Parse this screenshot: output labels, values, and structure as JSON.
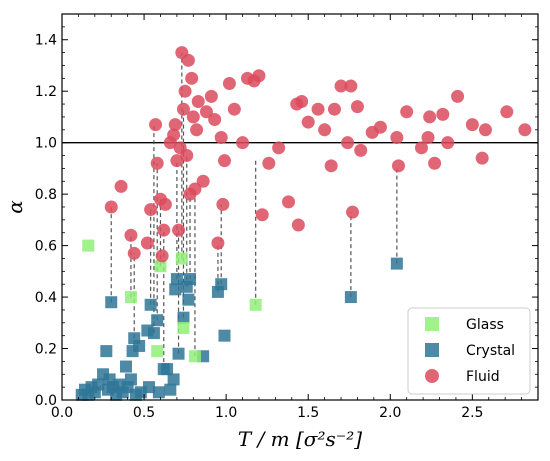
{
  "chart_data": {
    "type": "scatter",
    "xlabel": "T / m [σ²s⁻²]",
    "ylabel": "α",
    "xlim": [
      0.0,
      2.9
    ],
    "ylim": [
      0.0,
      1.5
    ],
    "xticks": [
      "0.0",
      "0.5",
      "1.0",
      "1.5",
      "2.0",
      "2.5"
    ],
    "yticks": [
      "0.0",
      "0.2",
      "0.4",
      "0.6",
      "0.8",
      "1.0",
      "1.2",
      "1.4"
    ],
    "reference_line_y": 1.0,
    "legend_position": "bottom-right",
    "colors": {
      "glass": "#90ee78",
      "crystal": "#2f7597",
      "fluid": "#dc4b5d",
      "connector": "#555555",
      "refline": "#000000"
    },
    "series": [
      {
        "name": "Glass",
        "marker": "square",
        "points": [
          [
            0.16,
            0.6
          ],
          [
            0.42,
            0.4
          ],
          [
            0.58,
            0.19
          ],
          [
            0.6,
            0.52
          ],
          [
            0.73,
            0.55
          ],
          [
            0.74,
            0.28
          ],
          [
            0.81,
            0.17
          ],
          [
            1.18,
            0.37
          ]
        ]
      },
      {
        "name": "Crystal",
        "marker": "square",
        "points": [
          [
            0.12,
            0.02
          ],
          [
            0.14,
            0.04
          ],
          [
            0.16,
            0.02
          ],
          [
            0.18,
            0.05
          ],
          [
            0.2,
            0.03
          ],
          [
            0.22,
            0.06
          ],
          [
            0.25,
            0.1
          ],
          [
            0.27,
            0.19
          ],
          [
            0.28,
            0.04
          ],
          [
            0.29,
            0.08
          ],
          [
            0.3,
            0.38
          ],
          [
            0.31,
            0.05
          ],
          [
            0.33,
            0.02
          ],
          [
            0.35,
            0.06
          ],
          [
            0.37,
            0.03
          ],
          [
            0.39,
            0.13
          ],
          [
            0.4,
            0.05
          ],
          [
            0.42,
            0.08
          ],
          [
            0.43,
            0.19
          ],
          [
            0.44,
            0.24
          ],
          [
            0.45,
            0.02
          ],
          [
            0.47,
            0.21
          ],
          [
            0.48,
            0.03
          ],
          [
            0.52,
            0.27
          ],
          [
            0.53,
            0.05
          ],
          [
            0.54,
            0.37
          ],
          [
            0.56,
            0.26
          ],
          [
            0.58,
            0.31
          ],
          [
            0.59,
            0.03
          ],
          [
            0.62,
            0.12
          ],
          [
            0.64,
            0.12
          ],
          [
            0.66,
            0.04
          ],
          [
            0.68,
            0.08
          ],
          [
            0.69,
            0.43
          ],
          [
            0.7,
            0.47
          ],
          [
            0.71,
            0.18
          ],
          [
            0.74,
            0.32
          ],
          [
            0.76,
            0.44
          ],
          [
            0.77,
            0.39
          ],
          [
            0.78,
            0.47
          ],
          [
            0.86,
            0.17
          ],
          [
            0.95,
            0.42
          ],
          [
            0.97,
            0.45
          ],
          [
            0.99,
            0.25
          ],
          [
            1.76,
            0.4
          ],
          [
            2.04,
            0.53
          ]
        ]
      },
      {
        "name": "Fluid",
        "marker": "circle",
        "points": [
          [
            0.3,
            0.75
          ],
          [
            0.36,
            0.83
          ],
          [
            0.42,
            0.64
          ],
          [
            0.44,
            0.57
          ],
          [
            0.52,
            0.61
          ],
          [
            0.54,
            0.74
          ],
          [
            0.57,
            1.07
          ],
          [
            0.58,
            0.92
          ],
          [
            0.6,
            0.78
          ],
          [
            0.61,
            0.56
          ],
          [
            0.62,
            0.66
          ],
          [
            0.63,
            0.76
          ],
          [
            0.66,
            1.0
          ],
          [
            0.68,
            1.03
          ],
          [
            0.69,
            1.07
          ],
          [
            0.7,
            0.93
          ],
          [
            0.71,
            0.66
          ],
          [
            0.72,
            0.98
          ],
          [
            0.73,
            1.35
          ],
          [
            0.74,
            1.13
          ],
          [
            0.75,
            1.2
          ],
          [
            0.76,
            0.95
          ],
          [
            0.77,
            1.32
          ],
          [
            0.78,
            0.8
          ],
          [
            0.79,
            1.25
          ],
          [
            0.8,
            1.1
          ],
          [
            0.81,
            0.82
          ],
          [
            0.82,
            1.05
          ],
          [
            0.83,
            1.16
          ],
          [
            0.86,
            0.85
          ],
          [
            0.88,
            1.12
          ],
          [
            0.91,
            1.18
          ],
          [
            0.93,
            1.09
          ],
          [
            0.95,
            0.61
          ],
          [
            0.97,
            1.02
          ],
          [
            0.98,
            0.76
          ],
          [
            0.99,
            0.93
          ],
          [
            1.02,
            1.23
          ],
          [
            1.05,
            1.13
          ],
          [
            1.1,
            1.0
          ],
          [
            1.13,
            1.25
          ],
          [
            1.17,
            1.24
          ],
          [
            1.2,
            1.26
          ],
          [
            1.22,
            0.72
          ],
          [
            1.26,
            0.92
          ],
          [
            1.32,
            0.98
          ],
          [
            1.38,
            0.77
          ],
          [
            1.43,
            1.15
          ],
          [
            1.44,
            0.68
          ],
          [
            1.46,
            1.16
          ],
          [
            1.5,
            1.08
          ],
          [
            1.56,
            1.13
          ],
          [
            1.6,
            1.05
          ],
          [
            1.64,
            0.91
          ],
          [
            1.66,
            1.13
          ],
          [
            1.7,
            1.22
          ],
          [
            1.74,
            1.0
          ],
          [
            1.76,
            1.22
          ],
          [
            1.77,
            0.73
          ],
          [
            1.8,
            1.14
          ],
          [
            1.82,
            0.97
          ],
          [
            1.89,
            1.04
          ],
          [
            1.94,
            1.06
          ],
          [
            2.04,
            1.02
          ],
          [
            2.05,
            0.91
          ],
          [
            2.1,
            1.12
          ],
          [
            2.19,
            0.98
          ],
          [
            2.23,
            1.02
          ],
          [
            2.24,
            1.1
          ],
          [
            2.27,
            0.92
          ],
          [
            2.32,
            1.11
          ],
          [
            2.35,
            1.0
          ],
          [
            2.41,
            1.18
          ],
          [
            2.5,
            1.07
          ],
          [
            2.56,
            0.94
          ],
          [
            2.58,
            1.05
          ],
          [
            2.71,
            1.12
          ],
          [
            2.82,
            1.05
          ]
        ]
      }
    ],
    "connections": [
      [
        0.3,
        0.38,
        0.75
      ],
      [
        0.42,
        0.4,
        0.64
      ],
      [
        0.44,
        0.24,
        0.57
      ],
      [
        0.54,
        0.37,
        0.74
      ],
      [
        0.56,
        0.26,
        1.07
      ],
      [
        0.58,
        0.31,
        0.92
      ],
      [
        0.6,
        0.52,
        0.78
      ],
      [
        0.62,
        0.12,
        0.66
      ],
      [
        0.7,
        0.47,
        0.93
      ],
      [
        0.71,
        0.18,
        0.66
      ],
      [
        0.73,
        0.55,
        1.35
      ],
      [
        0.74,
        0.32,
        1.13
      ],
      [
        0.76,
        0.44,
        0.95
      ],
      [
        0.78,
        0.47,
        0.8
      ],
      [
        0.81,
        0.17,
        0.82
      ],
      [
        0.95,
        0.42,
        0.61
      ],
      [
        0.97,
        0.45,
        0.76
      ],
      [
        1.18,
        0.37,
        0.93
      ],
      [
        1.76,
        0.4,
        0.73
      ],
      [
        2.04,
        0.53,
        0.91
      ]
    ]
  }
}
